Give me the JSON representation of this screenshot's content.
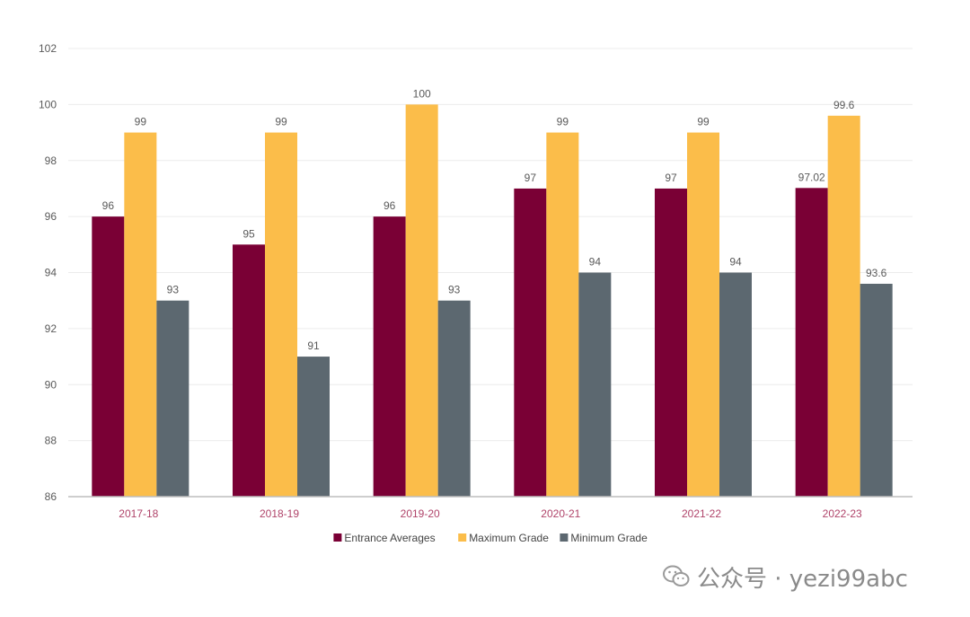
{
  "chart_data": {
    "type": "bar",
    "categories": [
      "2017-18",
      "2018-19",
      "2019-20",
      "2020-21",
      "2021-22",
      "2022-23"
    ],
    "series": [
      {
        "name": "Entrance Averages",
        "values": [
          96,
          95,
          96,
          97,
          97,
          97.02
        ],
        "labels": [
          "96",
          "95",
          "96",
          "97",
          "97",
          "97.02"
        ],
        "color": "#7a0035"
      },
      {
        "name": "Maximum Grade",
        "values": [
          99,
          99,
          100,
          99,
          99,
          99.6
        ],
        "labels": [
          "99",
          "99",
          "100",
          "99",
          "99",
          "99.6"
        ],
        "color": "#fbbd4a"
      },
      {
        "name": "Minimum Grade",
        "values": [
          93,
          91,
          93,
          94,
          94,
          93.6
        ],
        "labels": [
          "93",
          "91",
          "93",
          "94",
          "94",
          "93.6"
        ],
        "color": "#5c6870"
      }
    ],
    "ylim": [
      86,
      102
    ],
    "yticks": [
      "86",
      "88",
      "90",
      "92",
      "94",
      "96",
      "98",
      "100",
      "102"
    ],
    "grid": true,
    "legend_position": "bottom-center"
  },
  "watermark": {
    "text": "公众号 · yezi99abc",
    "icon": "wechat-icon"
  }
}
